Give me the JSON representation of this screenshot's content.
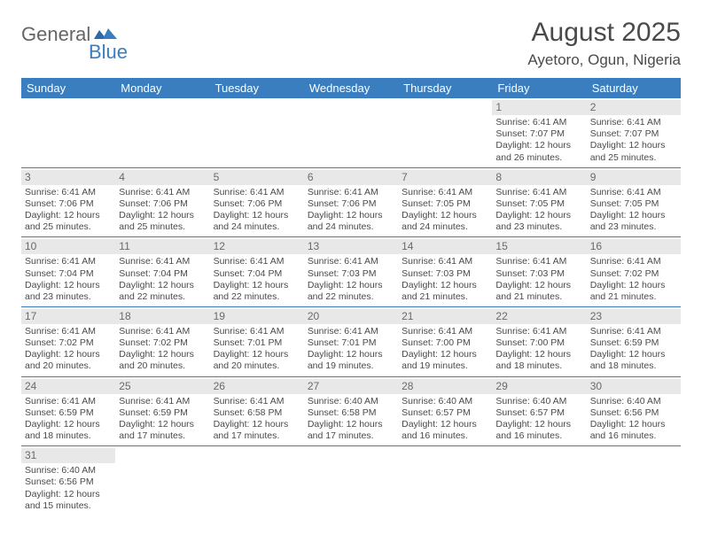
{
  "brand": {
    "part1": "General",
    "part2": "Blue"
  },
  "title": "August 2025",
  "location": "Ayetoro, Ogun, Nigeria",
  "colors": {
    "header_bg": "#3a7ebf",
    "header_text": "#ffffff",
    "daynum_bg": "#e8e8e8",
    "border": "#3a7ebf",
    "text": "#4a4a4a",
    "logo_gray": "#666666",
    "logo_blue": "#3a7ebf"
  },
  "day_headers": [
    "Sunday",
    "Monday",
    "Tuesday",
    "Wednesday",
    "Thursday",
    "Friday",
    "Saturday"
  ],
  "weeks": [
    [
      null,
      null,
      null,
      null,
      null,
      {
        "n": "1",
        "sr": "6:41 AM",
        "ss": "7:07 PM",
        "dl": "12 hours and 26 minutes."
      },
      {
        "n": "2",
        "sr": "6:41 AM",
        "ss": "7:07 PM",
        "dl": "12 hours and 25 minutes."
      }
    ],
    [
      {
        "n": "3",
        "sr": "6:41 AM",
        "ss": "7:06 PM",
        "dl": "12 hours and 25 minutes."
      },
      {
        "n": "4",
        "sr": "6:41 AM",
        "ss": "7:06 PM",
        "dl": "12 hours and 25 minutes."
      },
      {
        "n": "5",
        "sr": "6:41 AM",
        "ss": "7:06 PM",
        "dl": "12 hours and 24 minutes."
      },
      {
        "n": "6",
        "sr": "6:41 AM",
        "ss": "7:06 PM",
        "dl": "12 hours and 24 minutes."
      },
      {
        "n": "7",
        "sr": "6:41 AM",
        "ss": "7:05 PM",
        "dl": "12 hours and 24 minutes."
      },
      {
        "n": "8",
        "sr": "6:41 AM",
        "ss": "7:05 PM",
        "dl": "12 hours and 23 minutes."
      },
      {
        "n": "9",
        "sr": "6:41 AM",
        "ss": "7:05 PM",
        "dl": "12 hours and 23 minutes."
      }
    ],
    [
      {
        "n": "10",
        "sr": "6:41 AM",
        "ss": "7:04 PM",
        "dl": "12 hours and 23 minutes."
      },
      {
        "n": "11",
        "sr": "6:41 AM",
        "ss": "7:04 PM",
        "dl": "12 hours and 22 minutes."
      },
      {
        "n": "12",
        "sr": "6:41 AM",
        "ss": "7:04 PM",
        "dl": "12 hours and 22 minutes."
      },
      {
        "n": "13",
        "sr": "6:41 AM",
        "ss": "7:03 PM",
        "dl": "12 hours and 22 minutes."
      },
      {
        "n": "14",
        "sr": "6:41 AM",
        "ss": "7:03 PM",
        "dl": "12 hours and 21 minutes."
      },
      {
        "n": "15",
        "sr": "6:41 AM",
        "ss": "7:03 PM",
        "dl": "12 hours and 21 minutes."
      },
      {
        "n": "16",
        "sr": "6:41 AM",
        "ss": "7:02 PM",
        "dl": "12 hours and 21 minutes."
      }
    ],
    [
      {
        "n": "17",
        "sr": "6:41 AM",
        "ss": "7:02 PM",
        "dl": "12 hours and 20 minutes."
      },
      {
        "n": "18",
        "sr": "6:41 AM",
        "ss": "7:02 PM",
        "dl": "12 hours and 20 minutes."
      },
      {
        "n": "19",
        "sr": "6:41 AM",
        "ss": "7:01 PM",
        "dl": "12 hours and 20 minutes."
      },
      {
        "n": "20",
        "sr": "6:41 AM",
        "ss": "7:01 PM",
        "dl": "12 hours and 19 minutes."
      },
      {
        "n": "21",
        "sr": "6:41 AM",
        "ss": "7:00 PM",
        "dl": "12 hours and 19 minutes."
      },
      {
        "n": "22",
        "sr": "6:41 AM",
        "ss": "7:00 PM",
        "dl": "12 hours and 18 minutes."
      },
      {
        "n": "23",
        "sr": "6:41 AM",
        "ss": "6:59 PM",
        "dl": "12 hours and 18 minutes."
      }
    ],
    [
      {
        "n": "24",
        "sr": "6:41 AM",
        "ss": "6:59 PM",
        "dl": "12 hours and 18 minutes."
      },
      {
        "n": "25",
        "sr": "6:41 AM",
        "ss": "6:59 PM",
        "dl": "12 hours and 17 minutes."
      },
      {
        "n": "26",
        "sr": "6:41 AM",
        "ss": "6:58 PM",
        "dl": "12 hours and 17 minutes."
      },
      {
        "n": "27",
        "sr": "6:40 AM",
        "ss": "6:58 PM",
        "dl": "12 hours and 17 minutes."
      },
      {
        "n": "28",
        "sr": "6:40 AM",
        "ss": "6:57 PM",
        "dl": "12 hours and 16 minutes."
      },
      {
        "n": "29",
        "sr": "6:40 AM",
        "ss": "6:57 PM",
        "dl": "12 hours and 16 minutes."
      },
      {
        "n": "30",
        "sr": "6:40 AM",
        "ss": "6:56 PM",
        "dl": "12 hours and 16 minutes."
      }
    ],
    [
      {
        "n": "31",
        "sr": "6:40 AM",
        "ss": "6:56 PM",
        "dl": "12 hours and 15 minutes."
      },
      null,
      null,
      null,
      null,
      null,
      null
    ]
  ],
  "labels": {
    "sunrise": "Sunrise:",
    "sunset": "Sunset:",
    "daylight": "Daylight:"
  }
}
